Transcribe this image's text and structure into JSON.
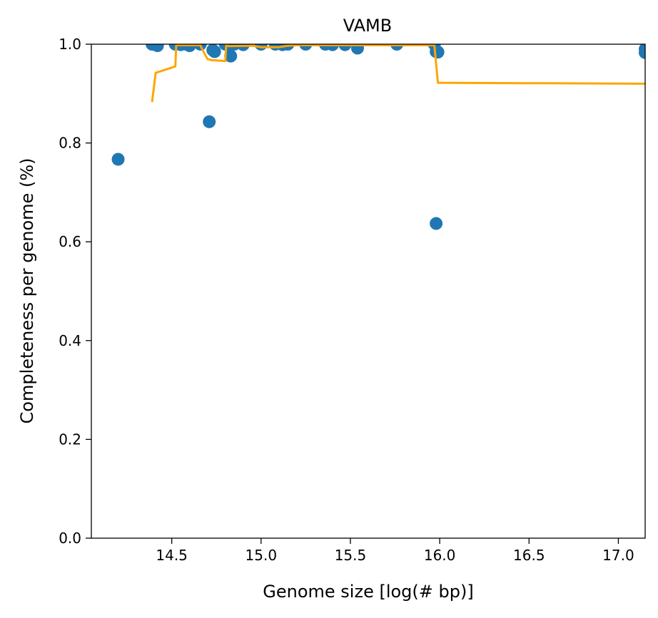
{
  "chart_data": {
    "type": "scatter",
    "title": "VAMB",
    "xlabel": "Genome size [log(# bp)]",
    "ylabel": "Completeness per genome (%)",
    "xlim": [
      14.05,
      17.15
    ],
    "ylim": [
      0.0,
      1.0
    ],
    "xticks": [
      "14.5",
      "15.0",
      "15.5",
      "16.0",
      "16.5",
      "17.0"
    ],
    "yticks": [
      "0.0",
      "0.2",
      "0.4",
      "0.6",
      "0.8",
      "1.0"
    ],
    "grid": false,
    "colors": {
      "points": "#1f77b4",
      "line": "#ffa500"
    },
    "points": {
      "x": [
        14.2,
        14.39,
        14.4,
        14.41,
        14.42,
        14.52,
        14.55,
        14.58,
        14.6,
        14.66,
        14.71,
        14.73,
        14.74,
        14.8,
        14.82,
        14.83,
        14.85,
        14.9,
        15.0,
        15.08,
        15.12,
        15.15,
        15.25,
        15.36,
        15.4,
        15.47,
        15.54,
        15.76,
        15.97,
        15.98,
        15.98,
        15.99,
        17.15,
        17.15
      ],
      "y": [
        0.767,
        1.0,
        1.0,
        0.999,
        0.997,
        1.0,
        0.999,
        1.0,
        0.997,
        1.0,
        0.843,
        0.988,
        0.985,
        1.0,
        0.999,
        0.976,
        1.0,
        0.999,
        1.0,
        1.0,
        0.999,
        1.0,
        1.0,
        1.0,
        0.999,
        0.999,
        0.992,
        1.0,
        1.0,
        0.985,
        0.637,
        0.984,
        0.99,
        0.983
      ]
    },
    "line": {
      "x": [
        14.39,
        14.41,
        14.52,
        14.525,
        14.66,
        14.67,
        14.7,
        14.72,
        14.8,
        14.805,
        14.82,
        14.95,
        15.0,
        15.1,
        15.15,
        15.2,
        15.97,
        15.99,
        16.5,
        17.15
      ],
      "y": [
        0.883,
        0.942,
        0.955,
        0.998,
        0.998,
        0.99,
        0.97,
        0.968,
        0.966,
        0.998,
        0.996,
        0.997,
        0.994,
        0.994,
        0.997,
        0.998,
        0.998,
        0.922,
        0.921,
        0.92
      ]
    }
  }
}
